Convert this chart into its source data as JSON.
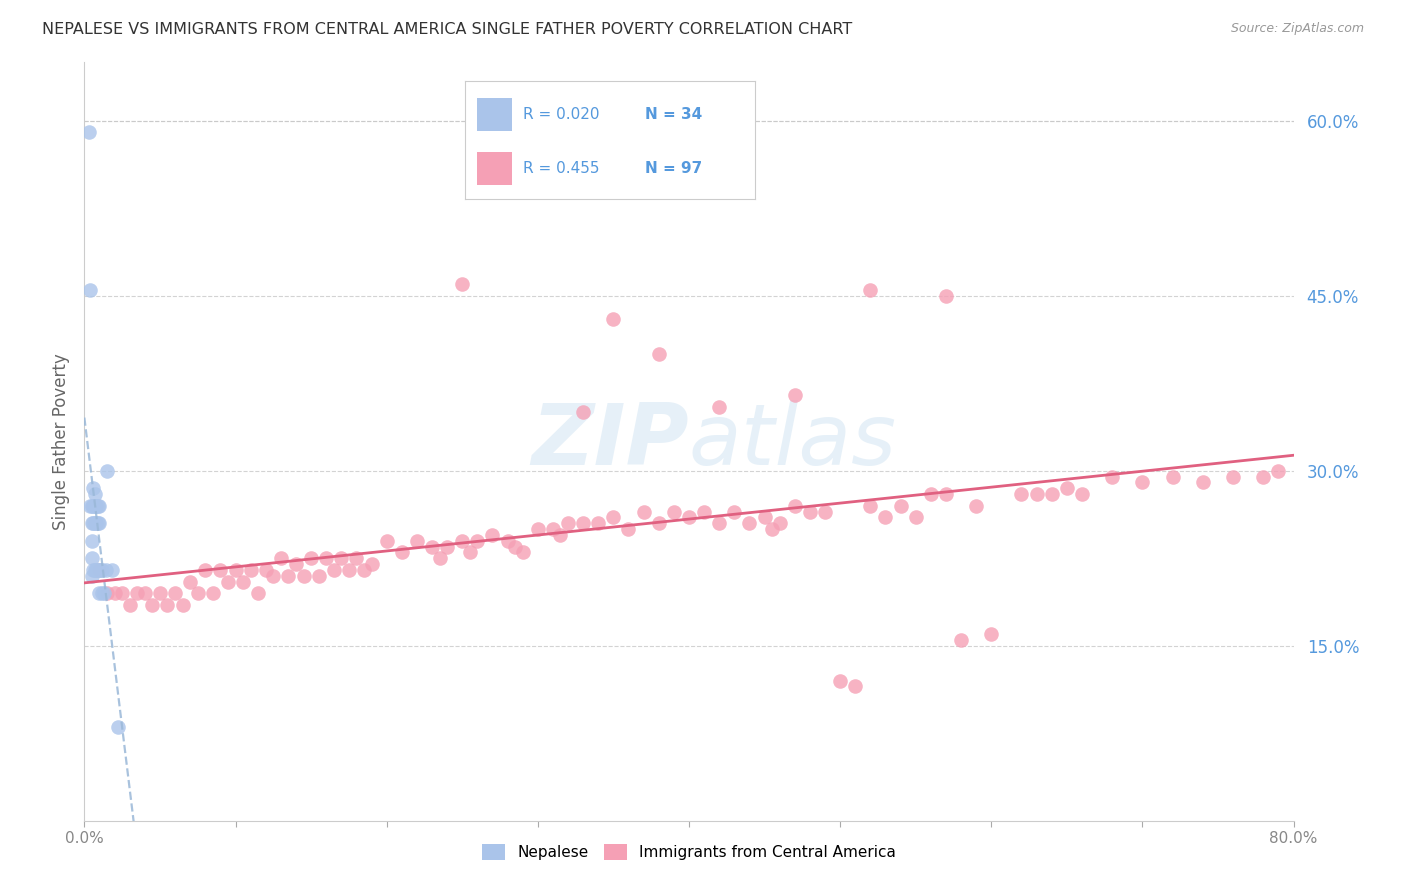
{
  "title": "NEPALESE VS IMMIGRANTS FROM CENTRAL AMERICA SINGLE FATHER POVERTY CORRELATION CHART",
  "source": "Source: ZipAtlas.com",
  "ylabel": "Single Father Poverty",
  "xlim": [
    0.0,
    0.8
  ],
  "ylim": [
    0.0,
    0.65
  ],
  "yticks_right": [
    0.15,
    0.3,
    0.45,
    0.6
  ],
  "ytick_labels_right": [
    "15.0%",
    "30.0%",
    "45.0%",
    "60.0%"
  ],
  "background_color": "#ffffff",
  "grid_color": "#c8c8c8",
  "watermark_text": "ZIPatlas",
  "legend_r1": "R = 0.020",
  "legend_n1": "N = 34",
  "legend_r2": "R = 0.455",
  "legend_n2": "N = 97",
  "nepalese_color": "#aac4ea",
  "central_america_color": "#f5a0b5",
  "trendline_nepalese_color": "#9ab8d8",
  "trendline_ca_color": "#e06080",
  "right_tick_color": "#5599dd",
  "nepalese_x": [
    0.003,
    0.004,
    0.004,
    0.005,
    0.005,
    0.005,
    0.005,
    0.005,
    0.006,
    0.006,
    0.006,
    0.006,
    0.007,
    0.007,
    0.007,
    0.007,
    0.008,
    0.008,
    0.008,
    0.009,
    0.009,
    0.009,
    0.01,
    0.01,
    0.01,
    0.01,
    0.011,
    0.012,
    0.012,
    0.013,
    0.014,
    0.015,
    0.018,
    0.022
  ],
  "nepalese_y": [
    0.59,
    0.455,
    0.27,
    0.27,
    0.255,
    0.24,
    0.225,
    0.21,
    0.285,
    0.27,
    0.255,
    0.215,
    0.28,
    0.27,
    0.255,
    0.215,
    0.27,
    0.255,
    0.215,
    0.27,
    0.255,
    0.215,
    0.27,
    0.255,
    0.215,
    0.195,
    0.215,
    0.215,
    0.195,
    0.195,
    0.215,
    0.3,
    0.215,
    0.08
  ],
  "ca_x": [
    0.01,
    0.015,
    0.02,
    0.025,
    0.03,
    0.035,
    0.04,
    0.045,
    0.05,
    0.055,
    0.06,
    0.065,
    0.07,
    0.075,
    0.08,
    0.085,
    0.09,
    0.095,
    0.1,
    0.105,
    0.11,
    0.115,
    0.12,
    0.125,
    0.13,
    0.135,
    0.14,
    0.145,
    0.15,
    0.155,
    0.16,
    0.165,
    0.17,
    0.175,
    0.18,
    0.185,
    0.19,
    0.2,
    0.21,
    0.22,
    0.23,
    0.235,
    0.24,
    0.25,
    0.255,
    0.26,
    0.27,
    0.28,
    0.285,
    0.29,
    0.3,
    0.31,
    0.315,
    0.32,
    0.33,
    0.34,
    0.35,
    0.36,
    0.37,
    0.38,
    0.39,
    0.4,
    0.41,
    0.42,
    0.43,
    0.44,
    0.45,
    0.455,
    0.46,
    0.47,
    0.48,
    0.49,
    0.5,
    0.51,
    0.52,
    0.53,
    0.54,
    0.55,
    0.56,
    0.57,
    0.58,
    0.59,
    0.6,
    0.62,
    0.63,
    0.64,
    0.65,
    0.66,
    0.68,
    0.7,
    0.72,
    0.74,
    0.76,
    0.78,
    0.79,
    0.25,
    0.35
  ],
  "ca_y": [
    0.215,
    0.195,
    0.195,
    0.195,
    0.185,
    0.195,
    0.195,
    0.185,
    0.195,
    0.185,
    0.195,
    0.185,
    0.205,
    0.195,
    0.215,
    0.195,
    0.215,
    0.205,
    0.215,
    0.205,
    0.215,
    0.195,
    0.215,
    0.21,
    0.225,
    0.21,
    0.22,
    0.21,
    0.225,
    0.21,
    0.225,
    0.215,
    0.225,
    0.215,
    0.225,
    0.215,
    0.22,
    0.24,
    0.23,
    0.24,
    0.235,
    0.225,
    0.235,
    0.24,
    0.23,
    0.24,
    0.245,
    0.24,
    0.235,
    0.23,
    0.25,
    0.25,
    0.245,
    0.255,
    0.255,
    0.255,
    0.26,
    0.25,
    0.265,
    0.255,
    0.265,
    0.26,
    0.265,
    0.255,
    0.265,
    0.255,
    0.26,
    0.25,
    0.255,
    0.27,
    0.265,
    0.265,
    0.12,
    0.115,
    0.27,
    0.26,
    0.27,
    0.26,
    0.28,
    0.28,
    0.155,
    0.27,
    0.16,
    0.28,
    0.28,
    0.28,
    0.285,
    0.28,
    0.295,
    0.29,
    0.295,
    0.29,
    0.295,
    0.295,
    0.3,
    0.46,
    0.43
  ],
  "ca_outliers_x": [
    0.33,
    0.38,
    0.42,
    0.47,
    0.52,
    0.57
  ],
  "ca_outliers_y": [
    0.35,
    0.4,
    0.355,
    0.365,
    0.455,
    0.45
  ]
}
